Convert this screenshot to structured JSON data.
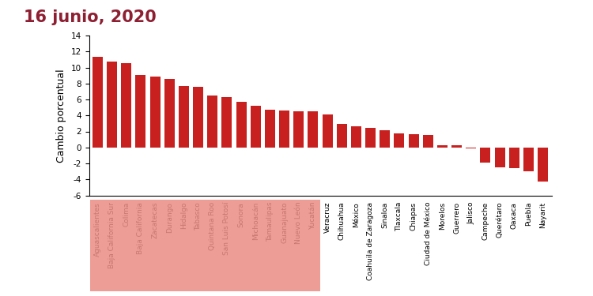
{
  "chart_data": {
    "type": "bar",
    "title": "16 junio, 2020",
    "y_label": "Cambio porcentual",
    "categories": [
      "Aguascalientes",
      "Baja California Sur",
      "Colima",
      "Baja California",
      "Zacatecas",
      "Durango",
      "Hidalgo",
      "Tabasco",
      "Quintana Roo",
      "San Luis Potosí",
      "Sonora",
      "Michoacán",
      "Tamaulipas",
      "Guanajuato",
      "Nuevo León",
      "Yucatán",
      "Veracruz",
      "Chihuahua",
      "México",
      "Coahuila de Zaragoza",
      "Sinaloa",
      "Tlaxcala",
      "Chiapas",
      "Ciudad de México",
      "Morelos",
      "Guerrero",
      "Jalisco",
      "Campeche",
      "Querétaro",
      "Oaxaca",
      "Puebla",
      "Nayarit"
    ],
    "values": [
      11.3,
      10.7,
      10.5,
      9.1,
      8.9,
      8.6,
      7.7,
      7.6,
      6.5,
      6.3,
      5.7,
      5.2,
      4.7,
      4.6,
      4.5,
      4.5,
      4.1,
      2.9,
      2.6,
      2.4,
      2.1,
      1.8,
      1.7,
      1.6,
      0.3,
      0.3,
      -0.1,
      -1.9,
      -2.5,
      -2.6,
      -3.0,
      -4.3
    ],
    "color": "#c8201f",
    "ylim": [
      -6,
      14
    ],
    "yticks": [
      -6,
      -4,
      -2,
      0,
      2,
      4,
      6,
      8,
      10,
      12,
      14
    ],
    "grid": false
  }
}
